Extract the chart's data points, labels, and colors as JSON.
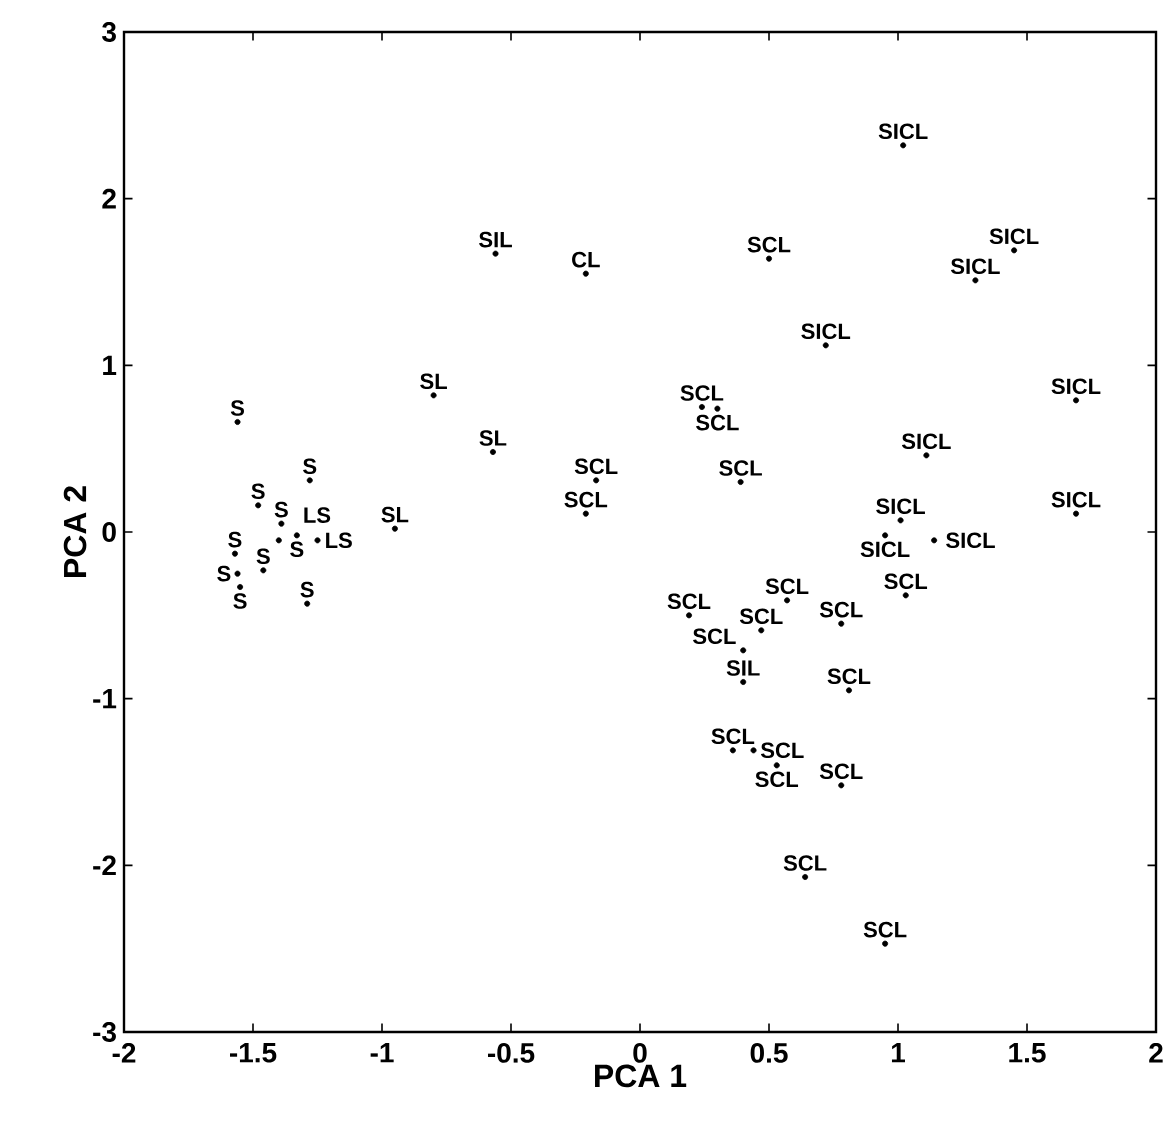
{
  "chart_data": {
    "type": "scatter",
    "xlabel": "PCA 1",
    "ylabel": "PCA 2",
    "xlim": [
      -2,
      2
    ],
    "ylim": [
      -3,
      3
    ],
    "xticks": [
      -2,
      -1.5,
      -1,
      -0.5,
      0,
      0.5,
      1,
      1.5,
      2
    ],
    "yticks": [
      -3,
      -2,
      -1,
      0,
      1,
      2,
      3
    ],
    "legend": false,
    "series": [
      {
        "name": "S",
        "color": "#000000",
        "x": [
          -1.56,
          -1.28,
          -1.48,
          -1.39,
          -1.33,
          -1.57,
          -1.56,
          -1.55,
          -1.46,
          -1.29
        ],
        "values": [
          0.66,
          0.31,
          0.16,
          0.05,
          -0.02,
          -0.13,
          -0.25,
          -0.33,
          -0.23,
          -0.43
        ]
      },
      {
        "name": "LS",
        "color": "#000000",
        "x": [
          -1.4,
          -1.25
        ],
        "values": [
          -0.05,
          -0.05
        ]
      },
      {
        "name": "SL",
        "color": "#000000",
        "x": [
          -0.8,
          -0.57,
          -0.95
        ],
        "values": [
          0.82,
          0.48,
          0.02
        ]
      },
      {
        "name": "SIL",
        "color": "#000000",
        "x": [
          -0.56,
          0.4
        ],
        "values": [
          1.67,
          -0.9
        ]
      },
      {
        "name": "CL",
        "color": "#000000",
        "x": [
          -0.21
        ],
        "values": [
          1.55
        ]
      },
      {
        "name": "SCL",
        "color": "#000000",
        "x": [
          0.5,
          0.24,
          0.3,
          -0.17,
          -0.21,
          0.39,
          0.47,
          0.19,
          0.57,
          0.78,
          1.03,
          0.4,
          0.81,
          0.36,
          0.44,
          0.53,
          0.78,
          0.64,
          0.95
        ],
        "values": [
          1.64,
          0.75,
          0.74,
          0.31,
          0.11,
          0.3,
          -0.59,
          -0.5,
          -0.41,
          -0.55,
          -0.38,
          -0.71,
          -0.95,
          -1.31,
          -1.31,
          -1.4,
          -1.52,
          -2.07,
          -2.47
        ]
      },
      {
        "name": "SICL",
        "color": "#000000",
        "x": [
          1.02,
          1.45,
          1.3,
          0.72,
          1.69,
          1.11,
          1.69,
          1.01,
          0.95,
          1.14
        ],
        "values": [
          2.32,
          1.69,
          1.51,
          1.12,
          0.79,
          0.46,
          0.11,
          0.07,
          -0.02,
          -0.05
        ]
      }
    ]
  }
}
